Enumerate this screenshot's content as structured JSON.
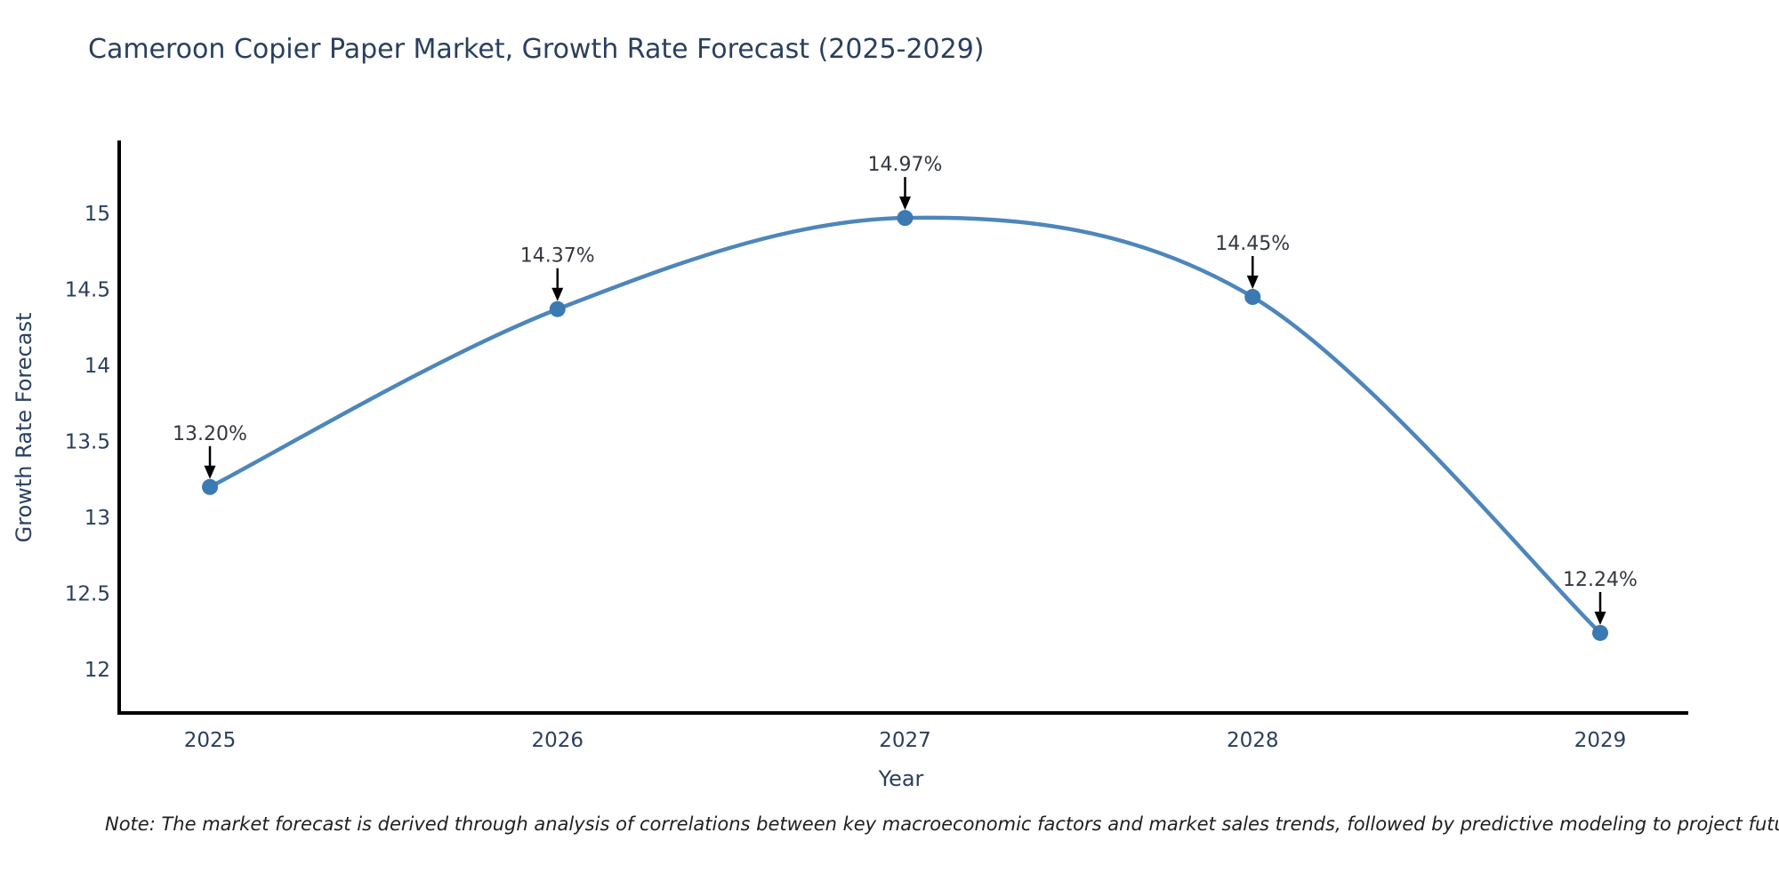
{
  "header": {
    "title": "Cameroon Copier Paper Market, Growth Rate Forecast (2025-2029)"
  },
  "chart_data": {
    "type": "line",
    "title": "Cameroon Copier Paper Market, Growth Rate Forecast (2025-2029)",
    "x": [
      "2025",
      "2026",
      "2027",
      "2028",
      "2029"
    ],
    "values": [
      13.2,
      14.37,
      14.97,
      14.45,
      12.24
    ],
    "point_labels": [
      "13.20%",
      "14.37%",
      "14.97%",
      "14.45%",
      "12.24%"
    ],
    "xlabel": "Year",
    "ylabel": "Growth Rate Forecast",
    "yticks": [
      12,
      12.5,
      13,
      13.5,
      14,
      14.5,
      15
    ],
    "ylim": [
      11.7,
      15.5
    ],
    "grid": false,
    "legend": "none",
    "line_color": "#4d86bb",
    "marker_color": "#3b79b3",
    "axis_color": "#000000",
    "annotation_color": "#333740",
    "annotation_arrow_color": "#000000",
    "text_color": "#2a3f5f"
  },
  "footer": {
    "note": "Note: The market forecast is derived through analysis of correlations between key macroeconomic factors and market sales trends, followed by predictive modeling to project future sal"
  }
}
